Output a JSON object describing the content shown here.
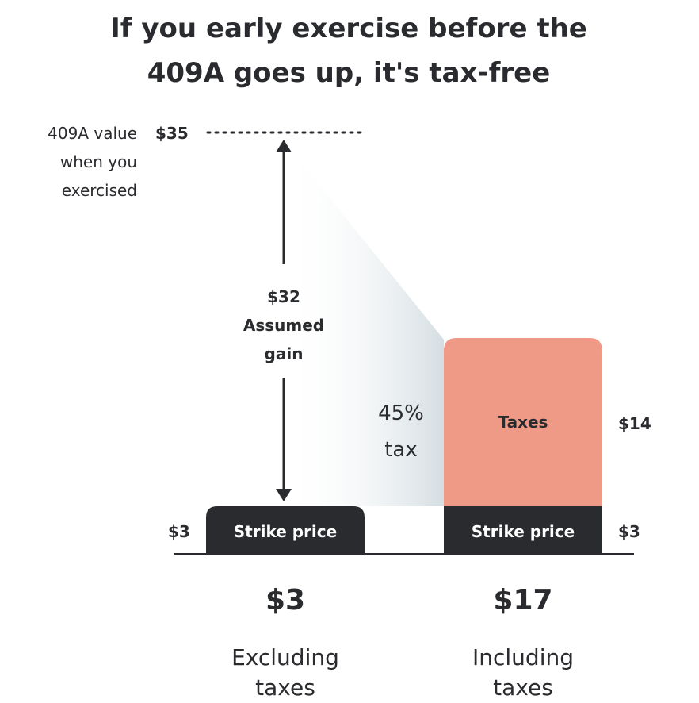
{
  "title_line1": "If you early exercise before the",
  "title_line2": "409A goes up, it's tax-free",
  "label_409a_line1": "409A value",
  "label_409a_line2": "when you",
  "label_409a_line3": "exercised",
  "value_top": "$35",
  "gain_value": "$32",
  "gain_line1": "Assumed",
  "gain_line2": "gain",
  "tax_rate": "45%",
  "tax_word": "tax",
  "taxes_label": "Taxes",
  "taxes_value": "$14",
  "strike_label": "Strike price",
  "strike_left_value": "$3",
  "strike_right_value": "$3",
  "left_total": "$3",
  "left_caption_line1": "Excluding",
  "left_caption_line2": "taxes",
  "right_total": "$17",
  "right_caption_line1": "Including",
  "right_caption_line2": "taxes",
  "colors": {
    "dark": "#2a2b2e",
    "taxes": "#ef9a87",
    "shade": "#dbe3e6"
  }
}
